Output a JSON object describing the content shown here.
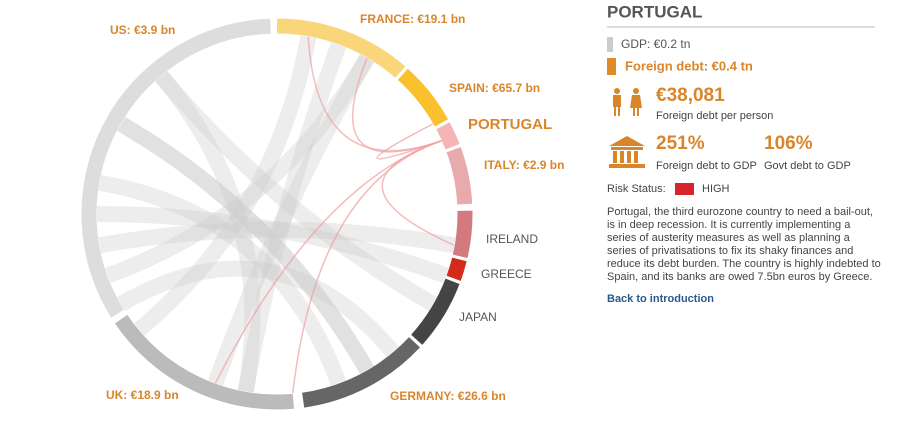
{
  "diagram": {
    "labels": [
      {
        "text": "US: €3.9 bn"
      },
      {
        "text": "FRANCE: €19.1 bn"
      },
      {
        "text": "SPAIN: €65.7 bn"
      },
      {
        "text": "PORTUGAL"
      },
      {
        "text": "ITALY: €2.9 bn"
      },
      {
        "text": "IRELAND"
      },
      {
        "text": "GREECE"
      },
      {
        "text": "JAPAN"
      },
      {
        "text": "GERMANY: €26.6 bn"
      },
      {
        "text": "UK: €18.9 bn"
      }
    ]
  },
  "panel": {
    "title": "PORTUGAL",
    "gdp": "GDP: €0.2 tn",
    "foreign_debt": "Foreign debt: €0.4 tn",
    "per_person": {
      "value": "€38,081",
      "label": "Foreign debt per person"
    },
    "debt_to_gdp": {
      "value": "251%",
      "label": "Foreign debt to GDP"
    },
    "govt_debt": {
      "value": "106%",
      "label": "Govt debt to GDP"
    },
    "risk": {
      "label": "Risk Status:",
      "value": "HIGH"
    },
    "description": [
      "Portugal, the third eurozone country to need a bail-out,",
      "is in deep recession. It is currently implementing a",
      "series of austerity measures as well as planning a",
      "series of privatisations to fix its shaky finances and",
      "reduce its debt burden. The country is highly indebted to",
      "Spain, and its banks are owed 7.5bn euros by Greece."
    ],
    "link": "Back to introduction"
  }
}
